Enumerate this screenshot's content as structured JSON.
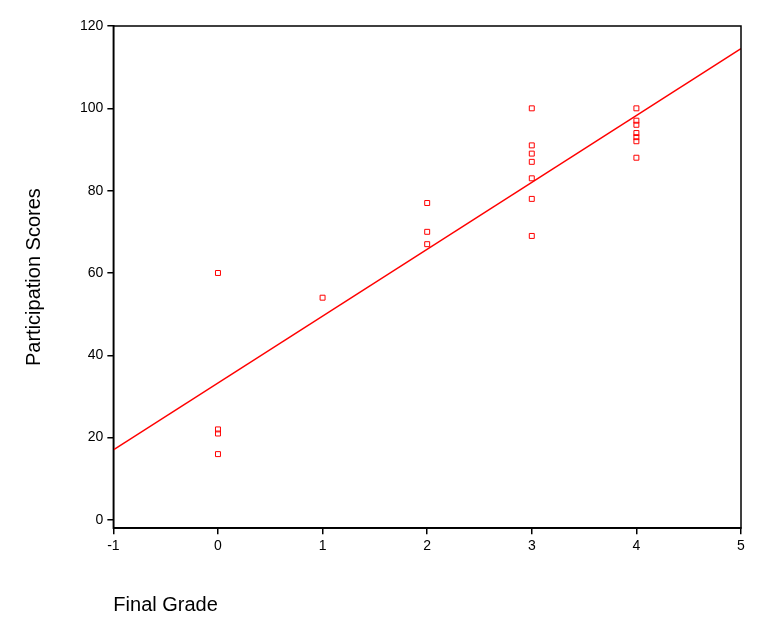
{
  "chart_data": {
    "type": "scatter",
    "x_label": "Final Grade",
    "y_label": "Participation Scores",
    "xlim": [
      -1,
      5
    ],
    "xticks": [
      -1,
      0,
      1,
      2,
      3,
      4,
      5
    ],
    "ylim": [
      -2,
      120
    ],
    "yticks": [
      0,
      20,
      40,
      60,
      80,
      100,
      120
    ],
    "grid": false,
    "series": [
      {
        "type": "scatter",
        "marker": "square",
        "color": "#ff0000",
        "x": [
          0,
          0,
          0,
          0,
          1,
          2,
          2,
          2,
          3,
          3,
          3,
          3,
          3,
          3,
          3,
          4,
          4,
          4,
          4,
          4,
          4,
          4
        ],
        "values": [
          60,
          22,
          21,
          16,
          54,
          77,
          70,
          67,
          100,
          91,
          89,
          87,
          83,
          78,
          69,
          100,
          97,
          96,
          94,
          93,
          92,
          88
        ]
      },
      {
        "type": "line",
        "line_style": "solid",
        "color": "#ff0000",
        "x": [
          -1,
          5
        ],
        "values": [
          17,
          114.5
        ]
      }
    ]
  }
}
